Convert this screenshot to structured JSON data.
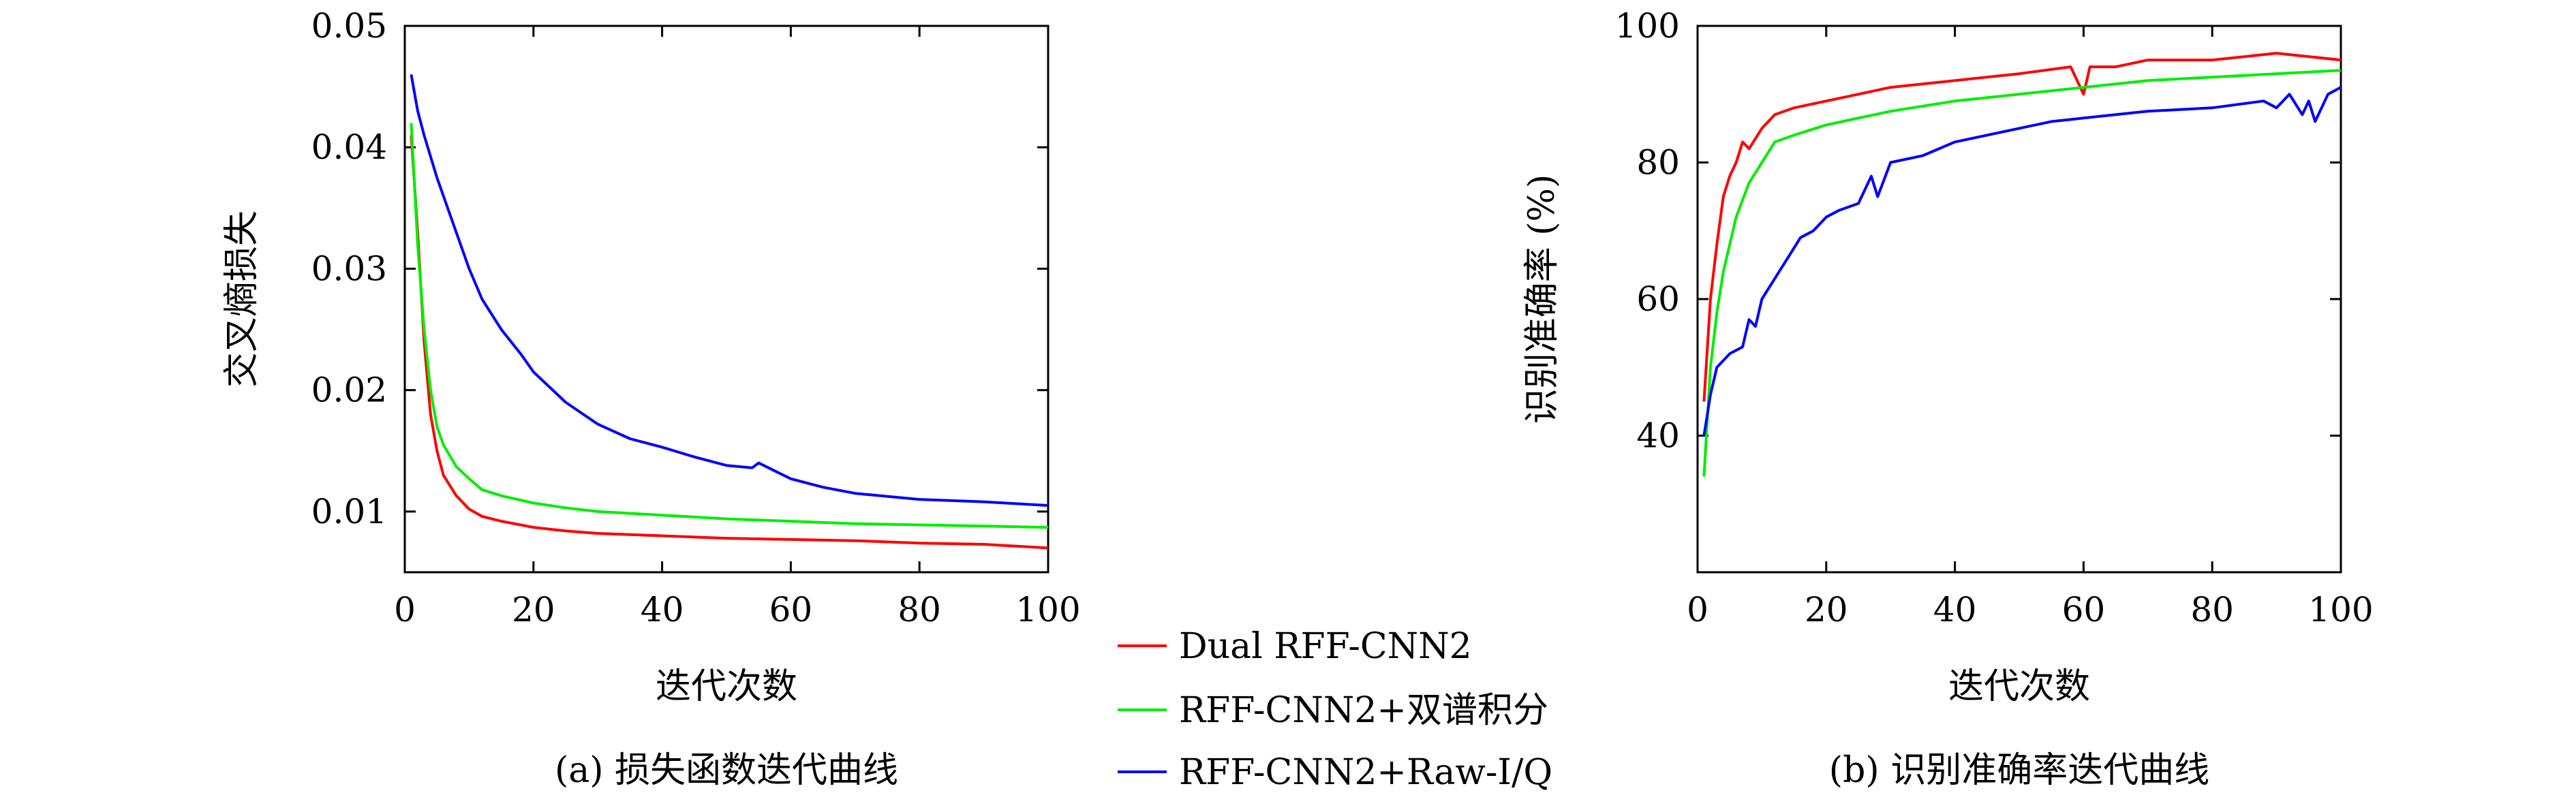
{
  "legend": {
    "entries": [
      {
        "label": "Dual RFF-CNN2",
        "color": "#ff0000"
      },
      {
        "label": "RFF-CNN2+双谱积分",
        "color": "#00ee00"
      },
      {
        "label": "RFF-CNN2+Raw-I/Q",
        "color": "#0000ff"
      }
    ]
  },
  "chart_data": [
    {
      "type": "line",
      "caption": "(a) 损失函数迭代曲线",
      "xlabel": "迭代次数",
      "ylabel": "交叉熵损失",
      "xlim": [
        0,
        100
      ],
      "ylim": [
        0.005,
        0.05
      ],
      "xticks": [
        0,
        20,
        40,
        60,
        80,
        100
      ],
      "yticks": [
        0.01,
        0.02,
        0.03,
        0.04,
        0.05
      ],
      "xtick_labels": [
        "0",
        "20",
        "40",
        "60",
        "80",
        "100"
      ],
      "ytick_labels": [
        "0.01",
        "0.02",
        "0.03",
        "0.04",
        "0.05"
      ],
      "series": [
        {
          "name": "Dual RFF-CNN2",
          "color": "#ff0000",
          "x": [
            1,
            2,
            3,
            4,
            5,
            6,
            8,
            10,
            12,
            15,
            20,
            25,
            30,
            40,
            50,
            60,
            70,
            80,
            90,
            100
          ],
          "y": [
            0.041,
            0.033,
            0.024,
            0.018,
            0.015,
            0.013,
            0.0113,
            0.0102,
            0.0096,
            0.0092,
            0.0087,
            0.0084,
            0.0082,
            0.008,
            0.0078,
            0.0077,
            0.0076,
            0.0074,
            0.0073,
            0.007
          ]
        },
        {
          "name": "RFF-CNN2+双谱积分",
          "color": "#00ee00",
          "x": [
            1,
            2,
            3,
            4,
            5,
            6,
            8,
            10,
            12,
            15,
            20,
            25,
            30,
            40,
            50,
            60,
            70,
            80,
            90,
            100
          ],
          "y": [
            0.042,
            0.032,
            0.025,
            0.02,
            0.017,
            0.0155,
            0.0137,
            0.0127,
            0.0118,
            0.0113,
            0.0107,
            0.0103,
            0.01,
            0.0097,
            0.0094,
            0.0092,
            0.009,
            0.0089,
            0.0088,
            0.0087
          ]
        },
        {
          "name": "RFF-CNN2+Raw-I/Q",
          "color": "#0000ff",
          "x": [
            1,
            2,
            3,
            5,
            8,
            10,
            12,
            15,
            18,
            20,
            25,
            30,
            35,
            40,
            45,
            50,
            54,
            55,
            60,
            65,
            70,
            80,
            90,
            100
          ],
          "y": [
            0.046,
            0.043,
            0.041,
            0.0375,
            0.033,
            0.03,
            0.0275,
            0.025,
            0.023,
            0.0215,
            0.019,
            0.0172,
            0.016,
            0.0153,
            0.0145,
            0.0138,
            0.0136,
            0.014,
            0.0127,
            0.012,
            0.0115,
            0.011,
            0.0108,
            0.0105
          ]
        }
      ]
    },
    {
      "type": "line",
      "caption": "(b) 识别准确率迭代曲线",
      "xlabel": "迭代次数",
      "ylabel": "识别准确率 (%)",
      "xlim": [
        0,
        100
      ],
      "ylim": [
        20,
        100
      ],
      "xticks": [
        0,
        20,
        40,
        60,
        80,
        100
      ],
      "yticks": [
        40,
        60,
        80,
        100
      ],
      "xtick_labels": [
        "0",
        "20",
        "40",
        "60",
        "80",
        "100"
      ],
      "ytick_labels": [
        "40",
        "60",
        "80",
        "100"
      ],
      "series": [
        {
          "name": "Dual RFF-CNN2",
          "color": "#ff0000",
          "x": [
            1,
            2,
            3,
            4,
            5,
            6,
            7,
            8,
            10,
            12,
            15,
            20,
            25,
            30,
            40,
            50,
            58,
            60,
            61,
            65,
            70,
            80,
            90,
            100
          ],
          "y": [
            45,
            60,
            68,
            75,
            78,
            80,
            83,
            82,
            85,
            87,
            88,
            89,
            90,
            91,
            92,
            93,
            94,
            90,
            94,
            94,
            95,
            95,
            96,
            95
          ]
        },
        {
          "name": "RFF-CNN2+双谱积分",
          "color": "#00ee00",
          "x": [
            1,
            2,
            3,
            4,
            5,
            6,
            8,
            10,
            12,
            15,
            20,
            25,
            30,
            40,
            50,
            60,
            70,
            80,
            90,
            100
          ],
          "y": [
            34,
            50,
            58,
            64,
            68,
            72,
            77,
            80,
            83,
            84,
            85.5,
            86.5,
            87.5,
            89,
            90,
            91,
            92,
            92.5,
            93,
            93.5
          ]
        },
        {
          "name": "RFF-CNN2+Raw-I/Q",
          "color": "#0000ff",
          "x": [
            1,
            2,
            3,
            5,
            7,
            8,
            9,
            10,
            12,
            14,
            16,
            18,
            20,
            22,
            25,
            27,
            28,
            30,
            35,
            40,
            45,
            50,
            55,
            60,
            65,
            70,
            80,
            88,
            90,
            92,
            94,
            95,
            96,
            98,
            100
          ],
          "y": [
            40,
            46,
            50,
            52,
            53,
            57,
            56,
            60,
            63,
            66,
            69,
            70,
            72,
            73,
            74,
            78,
            75,
            80,
            81,
            83,
            84,
            85,
            86,
            86.5,
            87,
            87.5,
            88,
            89,
            88,
            90,
            87,
            89,
            86,
            90,
            91
          ]
        }
      ]
    }
  ]
}
